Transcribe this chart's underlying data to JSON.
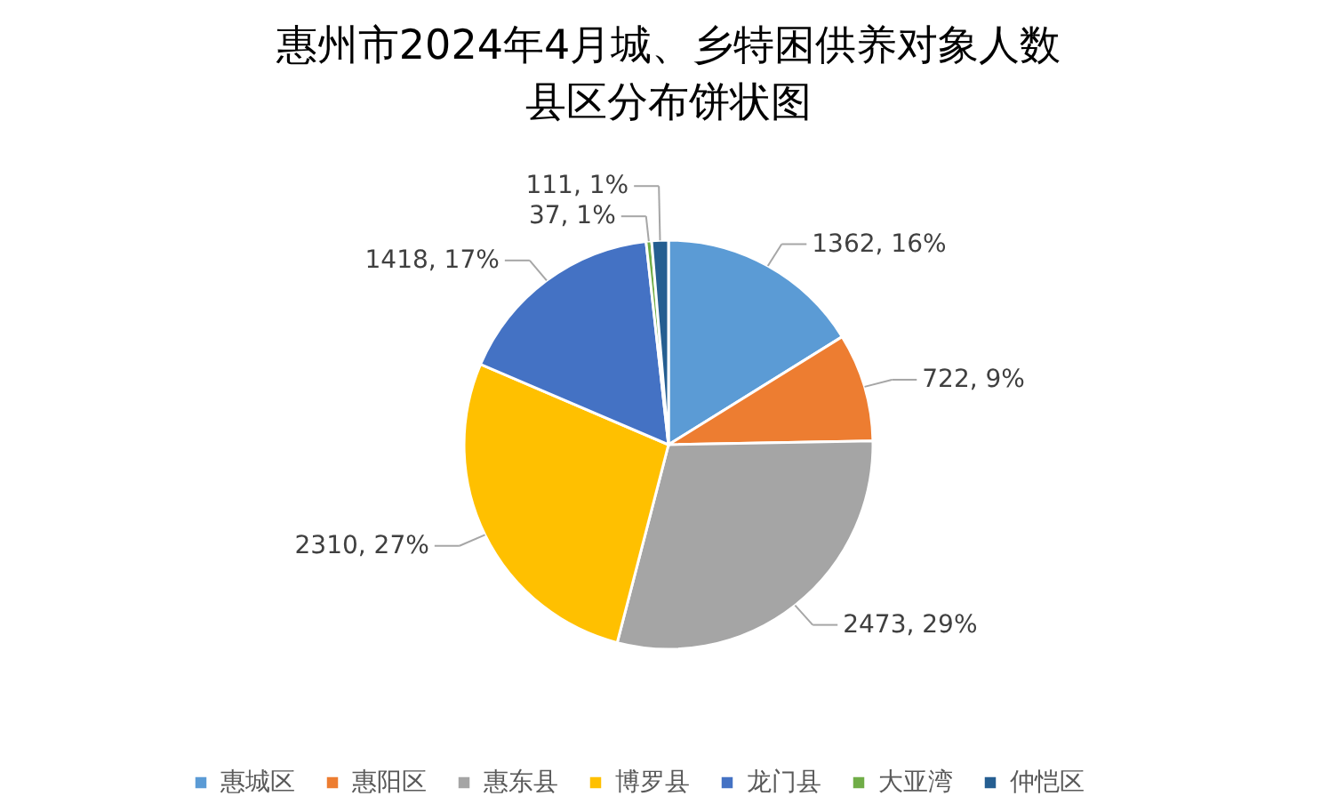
{
  "chart_data": {
    "type": "pie",
    "title": "惠州市2024年4月城、乡特困供养对象人数县区分布饼状图",
    "categories": [
      "惠城区",
      "惠阳区",
      "惠东县",
      "博罗县",
      "龙门县",
      "大亚湾",
      "仲恺区"
    ],
    "values": [
      1362,
      722,
      2473,
      2310,
      1418,
      37,
      111
    ],
    "colors": [
      "#5b9bd5",
      "#ed7d31",
      "#a5a5a5",
      "#ffc000",
      "#4472c4",
      "#70ad47",
      "#255e91"
    ],
    "value_labels": [
      "1362, 16%",
      "722, 9%",
      "2473, 29%",
      "2310, 27%",
      "1418, 17%",
      "37, 1%",
      "111, 1%"
    ],
    "legend": "bottom"
  }
}
